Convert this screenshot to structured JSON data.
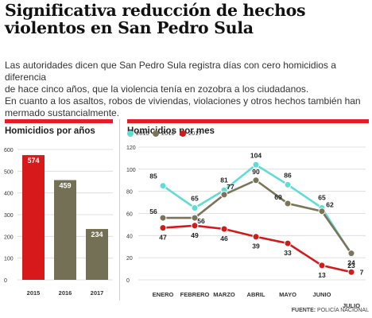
{
  "headline": [
    "Significativa reducción de hechos",
    "violentos en San Pedro Sula"
  ],
  "lede": [
    "Las autoridades dicen que San Pedro Sula registra días con cero homicidios a diferencia",
    "de hace cinco años, que la violencia tenía en zozobra a los ciudadanos.",
    "En cuanto a los asaltos, robos de viviendas, violaciones y otros hechos también han",
    "mermado sustancialmente."
  ],
  "source": {
    "label": "FUENTE:",
    "text": " POLICÍA NACIONAL"
  },
  "colors": {
    "accent": "#e21e26",
    "teal": "#5fdcd3",
    "olive": "#7a7458",
    "red": "#d21a1a",
    "bar_red": "#d7191c",
    "bar_olive": "#747055"
  },
  "chart_data": [
    {
      "type": "bar",
      "title": "Homicidios por años",
      "categories": [
        "2015",
        "2016",
        "2017"
      ],
      "values": [
        574,
        459,
        234
      ],
      "ylim": [
        0,
        600
      ],
      "yticks": [
        "0",
        "100",
        "200",
        "300",
        "400",
        "500",
        "600"
      ],
      "grid": true
    },
    {
      "type": "line",
      "title": "Homicidios por mes",
      "ylim": [
        0,
        120
      ],
      "yticks": [
        "0",
        "20",
        "40",
        "60",
        "80",
        "100",
        "120"
      ],
      "grid": true,
      "x": [
        "ENERO",
        "FEBRERO",
        "MARZO",
        "ABRIL",
        "MAYO",
        "JUNIO",
        "JULIO"
      ],
      "series": [
        {
          "name": "2015",
          "color": "#5fdcd3",
          "values": [
            85,
            65,
            81,
            104,
            86,
            65,
            23
          ]
        },
        {
          "name": "2016",
          "color": "#7a7458",
          "values": [
            56,
            56,
            77,
            90,
            69,
            62,
            24
          ]
        },
        {
          "name": "2017",
          "color": "#d21a1a",
          "values": [
            47,
            49,
            46,
            39,
            33,
            13,
            7
          ]
        }
      ]
    }
  ]
}
